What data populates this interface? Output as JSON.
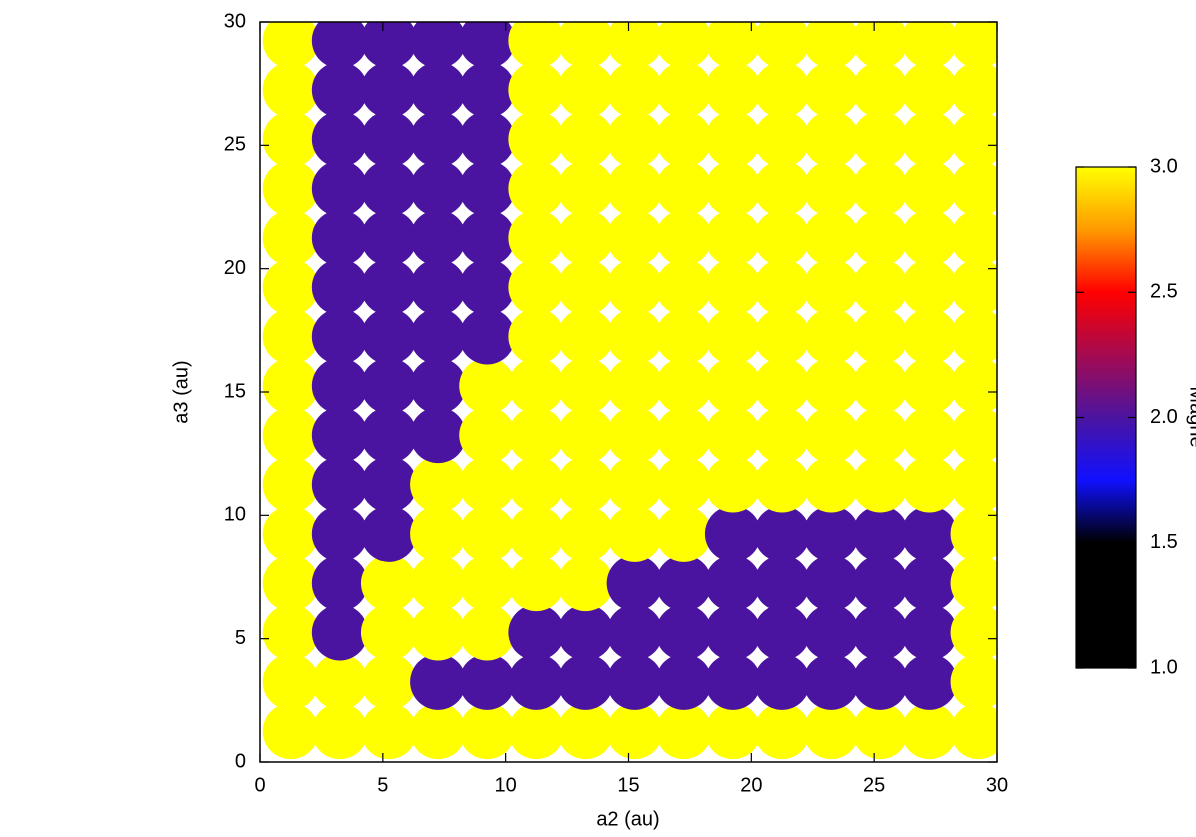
{
  "chart_data": {
    "type": "scatter",
    "xlabel": "a2 (au)",
    "ylabel": "a3 (au)",
    "colorbar_label": "Magne",
    "xlim": [
      0,
      30
    ],
    "ylim": [
      0,
      30
    ],
    "xticks": [
      0,
      5,
      10,
      15,
      20,
      25,
      30
    ],
    "yticks": [
      0,
      5,
      10,
      15,
      20,
      25,
      30
    ],
    "clim": [
      1,
      3
    ],
    "cticks": [
      {
        "value": 1,
        "label": "1.0"
      },
      {
        "value": 1.5,
        "label": "1.5"
      },
      {
        "value": 2,
        "label": "2.0"
      },
      {
        "value": 2.5,
        "label": "2.5"
      },
      {
        "value": 3,
        "label": "3.0"
      }
    ],
    "colormap": [
      [
        1,
        "#000000"
      ],
      [
        1.5,
        "#000000"
      ],
      [
        1.75,
        "#1010ff"
      ],
      [
        2,
        "#4b14a0"
      ],
      [
        2.5,
        "#ff0000"
      ],
      [
        2.75,
        "#ff9a00"
      ],
      [
        3,
        "#ffff00"
      ]
    ],
    "x": [
      1.25,
      3.25,
      5.25,
      7.25,
      9.25,
      11.25,
      13.25,
      15.25,
      17.25,
      19.25,
      21.25,
      23.25,
      25.25,
      27.25,
      29.25
    ],
    "y": [
      1.25,
      3.25,
      5.25,
      7.25,
      9.25,
      11.25,
      13.25,
      15.25,
      17.25,
      19.25,
      21.25,
      23.25,
      25.25,
      27.25,
      29.25
    ],
    "values": [
      [
        3,
        3,
        3,
        3,
        3,
        3,
        3,
        3,
        3,
        3,
        3,
        3,
        3,
        3,
        3
      ],
      [
        3,
        3,
        3,
        2,
        2,
        2,
        2,
        2,
        2,
        2,
        2,
        2,
        2,
        2,
        3
      ],
      [
        3,
        2,
        3,
        3,
        3,
        2,
        2,
        2,
        2,
        2,
        2,
        2,
        2,
        2,
        3
      ],
      [
        3,
        2,
        3,
        3,
        3,
        3,
        3,
        2,
        2,
        2,
        2,
        2,
        2,
        2,
        3
      ],
      [
        3,
        2,
        2,
        3,
        3,
        3,
        3,
        3,
        3,
        2,
        2,
        2,
        2,
        2,
        3
      ],
      [
        3,
        2,
        2,
        3,
        3,
        3,
        3,
        3,
        3,
        3,
        3,
        3,
        3,
        3,
        3
      ],
      [
        3,
        2,
        2,
        2,
        3,
        3,
        3,
        3,
        3,
        3,
        3,
        3,
        3,
        3,
        3
      ],
      [
        3,
        2,
        2,
        2,
        3,
        3,
        3,
        3,
        3,
        3,
        3,
        3,
        3,
        3,
        3
      ],
      [
        3,
        2,
        2,
        2,
        2,
        3,
        3,
        3,
        3,
        3,
        3,
        3,
        3,
        3,
        3
      ],
      [
        3,
        2,
        2,
        2,
        2,
        3,
        3,
        3,
        3,
        3,
        3,
        3,
        3,
        3,
        3
      ],
      [
        3,
        2,
        2,
        2,
        2,
        3,
        3,
        3,
        3,
        3,
        3,
        3,
        3,
        3,
        3
      ],
      [
        3,
        2,
        2,
        2,
        2,
        3,
        3,
        3,
        3,
        3,
        3,
        3,
        3,
        3,
        3
      ],
      [
        3,
        2,
        2,
        2,
        2,
        3,
        3,
        3,
        3,
        3,
        3,
        3,
        3,
        3,
        3
      ],
      [
        3,
        2,
        2,
        2,
        2,
        3,
        3,
        3,
        3,
        3,
        3,
        3,
        3,
        3,
        3
      ],
      [
        3,
        2,
        2,
        2,
        2,
        3,
        3,
        3,
        3,
        3,
        3,
        3,
        3,
        3,
        3
      ]
    ]
  }
}
